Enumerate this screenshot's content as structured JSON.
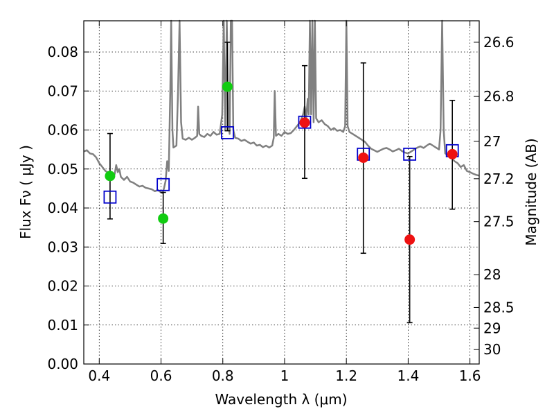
{
  "chart_data": {
    "type": "scatter",
    "title": "",
    "xlabel": "Wavelength  λ (μm)",
    "ylabel": "Flux  Fν  ( μJy )",
    "y2label": "Magnitude (AB)",
    "xlim": [
      0.35,
      1.63
    ],
    "ylim": [
      0.0,
      0.088
    ],
    "grid": true,
    "x_ticks": [
      0.4,
      0.6,
      0.8,
      1.0,
      1.2,
      1.4,
      1.6
    ],
    "x_tick_labels": [
      "0.4",
      "0.6",
      "0.8",
      "1",
      "1.2",
      "1.4",
      "1.6"
    ],
    "y_ticks": [
      0.0,
      0.01,
      0.02,
      0.03,
      0.04,
      0.05,
      0.06,
      0.07,
      0.08
    ],
    "y_tick_labels": [
      "0.00",
      "0.01",
      "0.02",
      "0.03",
      "0.04",
      "0.05",
      "0.06",
      "0.07",
      "0.08"
    ],
    "y2_ticks": [
      {
        "flux": 0.0825,
        "label": "26.6"
      },
      {
        "flux": 0.0686,
        "label": "26.8"
      },
      {
        "flux": 0.0571,
        "label": "27"
      },
      {
        "flux": 0.0475,
        "label": "27.2"
      },
      {
        "flux": 0.0365,
        "label": "27.5"
      },
      {
        "flux": 0.0229,
        "label": "28"
      },
      {
        "flux": 0.0145,
        "label": "28.5"
      },
      {
        "flux": 0.0092,
        "label": "29"
      },
      {
        "flux": 0.0037,
        "label": "30"
      }
    ],
    "series": [
      {
        "kind": "spectrum",
        "color": "#808080",
        "points": [
          [
            0.35,
            0.0545
          ],
          [
            0.36,
            0.0548
          ],
          [
            0.37,
            0.054
          ],
          [
            0.38,
            0.0538
          ],
          [
            0.39,
            0.053
          ],
          [
            0.4,
            0.0515
          ],
          [
            0.41,
            0.0505
          ],
          [
            0.42,
            0.0495
          ],
          [
            0.43,
            0.049
          ],
          [
            0.44,
            0.0482
          ],
          [
            0.45,
            0.0487
          ],
          [
            0.455,
            0.051
          ],
          [
            0.46,
            0.0492
          ],
          [
            0.465,
            0.05
          ],
          [
            0.47,
            0.048
          ],
          [
            0.48,
            0.0472
          ],
          [
            0.49,
            0.048
          ],
          [
            0.5,
            0.0468
          ],
          [
            0.51,
            0.0465
          ],
          [
            0.52,
            0.046
          ],
          [
            0.53,
            0.0455
          ],
          [
            0.54,
            0.0457
          ],
          [
            0.55,
            0.0452
          ],
          [
            0.56,
            0.045
          ],
          [
            0.57,
            0.0448
          ],
          [
            0.58,
            0.0443
          ],
          [
            0.59,
            0.0446
          ],
          [
            0.6,
            0.044
          ],
          [
            0.605,
            0.0438
          ],
          [
            0.61,
            0.0452
          ],
          [
            0.615,
            0.047
          ],
          [
            0.62,
            0.052
          ],
          [
            0.625,
            0.0495
          ],
          [
            0.63,
            0.07
          ],
          [
            0.633,
            0.09
          ],
          [
            0.637,
            0.06
          ],
          [
            0.64,
            0.0555
          ],
          [
            0.65,
            0.056
          ],
          [
            0.655,
            0.07
          ],
          [
            0.66,
            0.088
          ],
          [
            0.665,
            0.062
          ],
          [
            0.67,
            0.0578
          ],
          [
            0.68,
            0.0575
          ],
          [
            0.69,
            0.058
          ],
          [
            0.7,
            0.0575
          ],
          [
            0.71,
            0.058
          ],
          [
            0.717,
            0.0585
          ],
          [
            0.72,
            0.066
          ],
          [
            0.724,
            0.059
          ],
          [
            0.73,
            0.0585
          ],
          [
            0.74,
            0.0582
          ],
          [
            0.75,
            0.059
          ],
          [
            0.76,
            0.0585
          ],
          [
            0.77,
            0.0595
          ],
          [
            0.78,
            0.0588
          ],
          [
            0.79,
            0.059
          ],
          [
            0.798,
            0.064
          ],
          [
            0.803,
            0.088
          ],
          [
            0.808,
            0.06
          ],
          [
            0.813,
            0.088
          ],
          [
            0.818,
            0.062
          ],
          [
            0.822,
            0.059
          ],
          [
            0.826,
            0.088
          ],
          [
            0.83,
            0.088
          ],
          [
            0.834,
            0.06
          ],
          [
            0.84,
            0.058
          ],
          [
            0.85,
            0.0578
          ],
          [
            0.86,
            0.0572
          ],
          [
            0.87,
            0.0575
          ],
          [
            0.88,
            0.057
          ],
          [
            0.89,
            0.0565
          ],
          [
            0.9,
            0.0568
          ],
          [
            0.91,
            0.056
          ],
          [
            0.92,
            0.0562
          ],
          [
            0.93,
            0.0556
          ],
          [
            0.94,
            0.056
          ],
          [
            0.95,
            0.0555
          ],
          [
            0.96,
            0.056
          ],
          [
            0.965,
            0.058
          ],
          [
            0.968,
            0.07
          ],
          [
            0.972,
            0.0585
          ],
          [
            0.98,
            0.059
          ],
          [
            0.99,
            0.0585
          ],
          [
            1.0,
            0.0595
          ],
          [
            1.01,
            0.059
          ],
          [
            1.02,
            0.0592
          ],
          [
            1.03,
            0.06
          ],
          [
            1.04,
            0.061
          ],
          [
            1.05,
            0.062
          ],
          [
            1.06,
            0.064
          ],
          [
            1.065,
            0.066
          ],
          [
            1.07,
            0.063
          ],
          [
            1.075,
            0.068
          ],
          [
            1.078,
            0.064
          ],
          [
            1.082,
            0.088
          ],
          [
            1.086,
            0.064
          ],
          [
            1.09,
            0.088
          ],
          [
            1.094,
            0.062
          ],
          [
            1.098,
            0.088
          ],
          [
            1.102,
            0.063
          ],
          [
            1.11,
            0.062
          ],
          [
            1.12,
            0.0625
          ],
          [
            1.13,
            0.0615
          ],
          [
            1.14,
            0.061
          ],
          [
            1.15,
            0.06
          ],
          [
            1.16,
            0.0605
          ],
          [
            1.17,
            0.0598
          ],
          [
            1.18,
            0.06
          ],
          [
            1.19,
            0.0595
          ],
          [
            1.196,
            0.061
          ],
          [
            1.2,
            0.088
          ],
          [
            1.204,
            0.061
          ],
          [
            1.21,
            0.0595
          ],
          [
            1.22,
            0.059
          ],
          [
            1.23,
            0.0585
          ],
          [
            1.24,
            0.058
          ],
          [
            1.25,
            0.0575
          ],
          [
            1.26,
            0.057
          ],
          [
            1.27,
            0.056
          ],
          [
            1.28,
            0.0552
          ],
          [
            1.29,
            0.0548
          ],
          [
            1.3,
            0.0544
          ],
          [
            1.31,
            0.0548
          ],
          [
            1.32,
            0.0552
          ],
          [
            1.33,
            0.0554
          ],
          [
            1.34,
            0.055
          ],
          [
            1.35,
            0.0545
          ],
          [
            1.36,
            0.0548
          ],
          [
            1.37,
            0.0552
          ],
          [
            1.38,
            0.0546
          ],
          [
            1.39,
            0.0542
          ],
          [
            1.4,
            0.054
          ],
          [
            1.41,
            0.0545
          ],
          [
            1.42,
            0.055
          ],
          [
            1.43,
            0.0555
          ],
          [
            1.44,
            0.0558
          ],
          [
            1.45,
            0.0554
          ],
          [
            1.46,
            0.056
          ],
          [
            1.47,
            0.0565
          ],
          [
            1.48,
            0.056
          ],
          [
            1.49,
            0.0555
          ],
          [
            1.5,
            0.055
          ],
          [
            1.505,
            0.06
          ],
          [
            1.51,
            0.088
          ],
          [
            1.515,
            0.06
          ],
          [
            1.52,
            0.054
          ],
          [
            1.53,
            0.0535
          ],
          [
            1.54,
            0.053
          ],
          [
            1.55,
            0.052
          ],
          [
            1.56,
            0.0515
          ],
          [
            1.57,
            0.0505
          ],
          [
            1.58,
            0.051
          ],
          [
            1.59,
            0.0495
          ],
          [
            1.6,
            0.0492
          ],
          [
            1.61,
            0.0488
          ],
          [
            1.62,
            0.0485
          ],
          [
            1.63,
            0.0483
          ]
        ]
      },
      {
        "kind": "model_squares",
        "color": "#0000cc",
        "points": [
          [
            0.435,
            0.0428
          ],
          [
            0.607,
            0.046
          ],
          [
            0.815,
            0.0593
          ],
          [
            1.065,
            0.062
          ],
          [
            1.255,
            0.0538
          ],
          [
            1.405,
            0.0538
          ],
          [
            1.543,
            0.0547
          ]
        ]
      },
      {
        "kind": "green_detections",
        "color": "#11cc11",
        "points": [
          {
            "x": 0.435,
            "y": 0.0482,
            "ylow": 0.0372,
            "yhigh": 0.0591
          },
          {
            "x": 0.607,
            "y": 0.0373,
            "ylow": 0.0309,
            "yhigh": 0.044
          },
          {
            "x": 0.815,
            "y": 0.0711,
            "ylow": 0.0598,
            "yhigh": 0.0825
          }
        ]
      },
      {
        "kind": "red_detections",
        "color": "#ee1111",
        "points": [
          {
            "x": 1.065,
            "y": 0.0619,
            "ylow": 0.0476,
            "yhigh": 0.0765
          },
          {
            "x": 1.255,
            "y": 0.0529,
            "ylow": 0.0284,
            "yhigh": 0.0772
          },
          {
            "x": 1.405,
            "y": 0.0319,
            "ylow": 0.0106,
            "yhigh": 0.0532
          },
          {
            "x": 1.543,
            "y": 0.0538,
            "ylow": 0.0397,
            "yhigh": 0.0676
          }
        ]
      }
    ]
  }
}
